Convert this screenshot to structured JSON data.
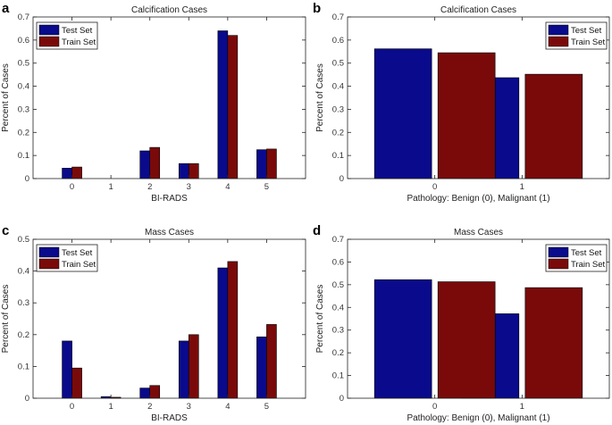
{
  "colors": {
    "test": "#0a0a8c",
    "train": "#7a0a0a",
    "axis": "#222222",
    "tick_text": "#333333",
    "background": "#ffffff"
  },
  "chart_data": [
    {
      "panel_letter": "a",
      "type": "bar",
      "title": "Calcification Cases",
      "xlabel": "BI-RADS",
      "ylabel": "Percent of Cases",
      "categories": [
        "0",
        "1",
        "2",
        "3",
        "4",
        "5"
      ],
      "ylim": [
        0,
        0.7
      ],
      "yticks": [
        "0",
        "0.1",
        "0.2",
        "0.3",
        "0.4",
        "0.5",
        "0.6",
        "0.7"
      ],
      "legend_position": "top-left",
      "grid": false,
      "series": [
        {
          "name": "Test Set",
          "values": [
            0.045,
            0.0,
            0.12,
            0.065,
            0.64,
            0.125
          ]
        },
        {
          "name": "Train Set",
          "values": [
            0.05,
            0.0,
            0.135,
            0.065,
            0.62,
            0.128
          ]
        }
      ]
    },
    {
      "panel_letter": "b",
      "type": "bar",
      "title": "Calcification Cases",
      "xlabel": "Pathology: Benign (0), Malignant (1)",
      "ylabel": "Percent of Cases",
      "categories": [
        "0",
        "1"
      ],
      "ylim": [
        0,
        0.7
      ],
      "yticks": [
        "0",
        "0.1",
        "0.2",
        "0.3",
        "0.4",
        "0.5",
        "0.6",
        "0.7"
      ],
      "legend_position": "top-right",
      "grid": false,
      "series": [
        {
          "name": "Test Set",
          "values": [
            0.562,
            0.437
          ]
        },
        {
          "name": "Train Set",
          "values": [
            0.545,
            0.452
          ]
        }
      ]
    },
    {
      "panel_letter": "c",
      "type": "bar",
      "title": "Mass Cases",
      "xlabel": "BI-RADS",
      "ylabel": "Percent of Cases",
      "categories": [
        "0",
        "1",
        "2",
        "3",
        "4",
        "5"
      ],
      "ylim": [
        0,
        0.5
      ],
      "yticks": [
        "0",
        "0.1",
        "0.2",
        "0.3",
        "0.4",
        "0.5"
      ],
      "legend_position": "top-left",
      "grid": false,
      "series": [
        {
          "name": "Test Set",
          "values": [
            0.18,
            0.005,
            0.032,
            0.18,
            0.41,
            0.193
          ]
        },
        {
          "name": "Train Set",
          "values": [
            0.095,
            0.003,
            0.04,
            0.2,
            0.43,
            0.232
          ]
        }
      ]
    },
    {
      "panel_letter": "d",
      "type": "bar",
      "title": "Mass Cases",
      "xlabel": "Pathology: Benign (0), Malignant (1)",
      "ylabel": "Percent of Cases",
      "categories": [
        "0",
        "1"
      ],
      "ylim": [
        0,
        0.7
      ],
      "yticks": [
        "0",
        "0.1",
        "0.2",
        "0.3",
        "0.4",
        "0.5",
        "0.6",
        "0.7"
      ],
      "legend_position": "top-right",
      "grid": false,
      "series": [
        {
          "name": "Test Set",
          "values": [
            0.522,
            0.372
          ]
        },
        {
          "name": "Train Set",
          "values": [
            0.513,
            0.487
          ]
        }
      ]
    }
  ]
}
